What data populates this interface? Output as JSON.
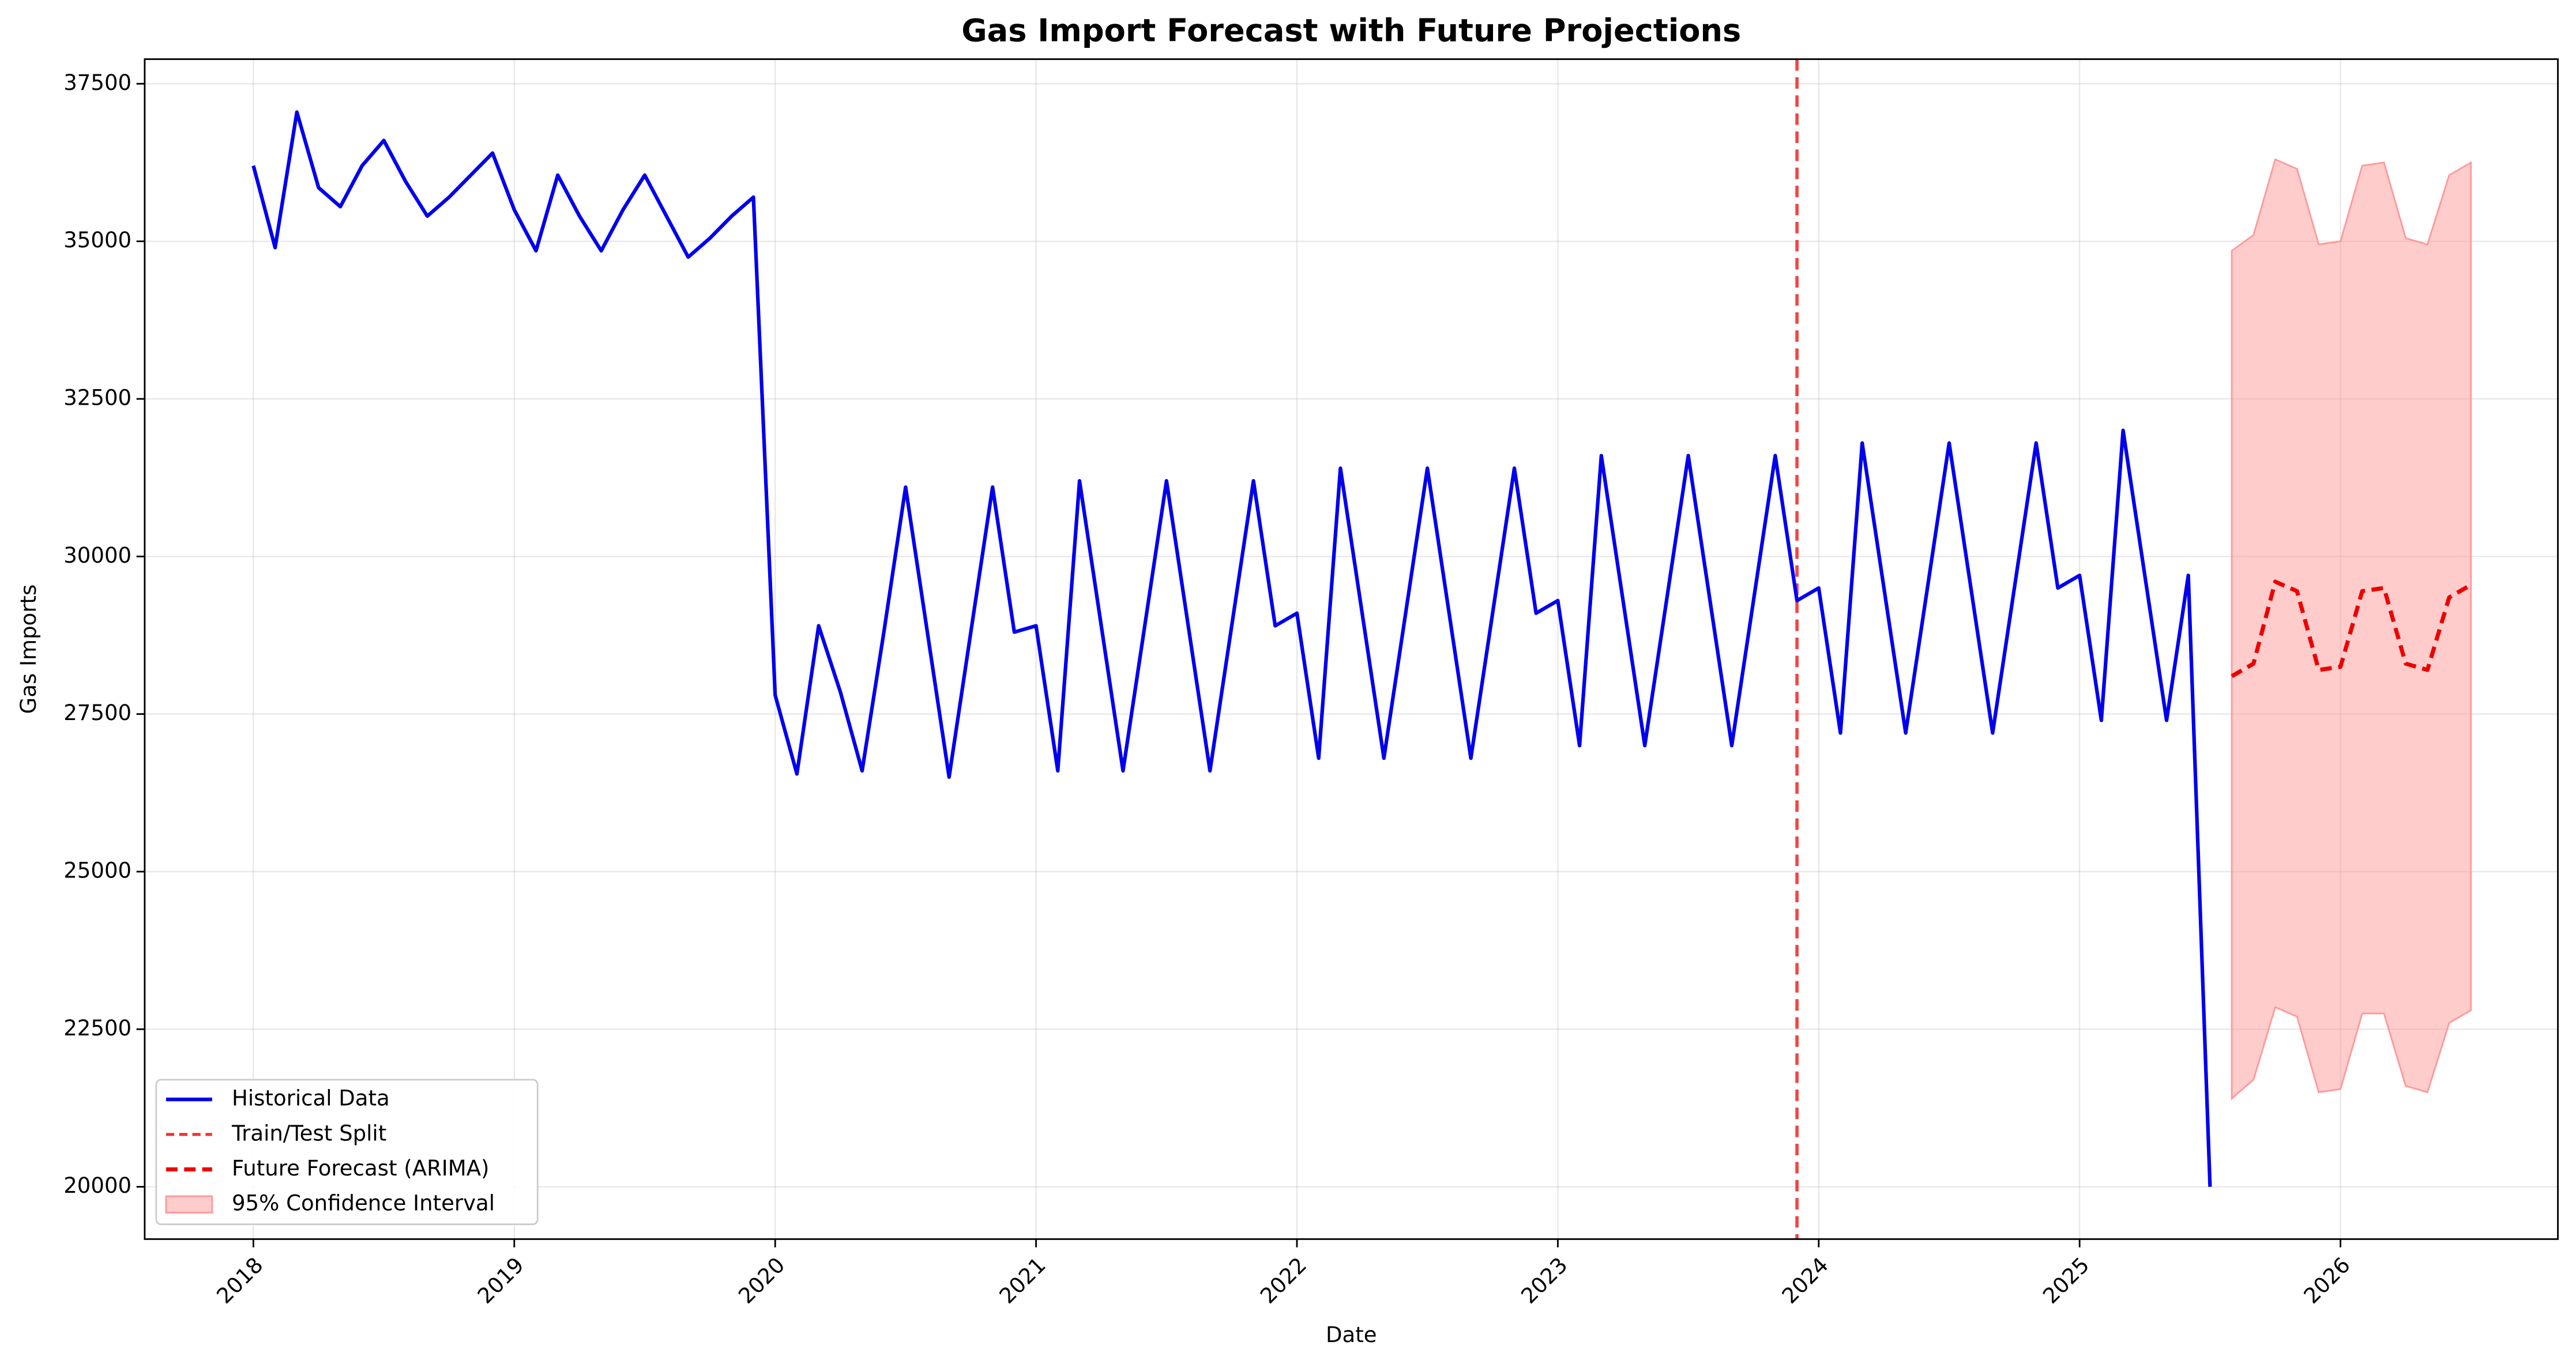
{
  "chart_data": {
    "type": "line",
    "title": "Gas Import Forecast with Future Projections",
    "x_label": "Date",
    "y_label": "Gas Imports",
    "xlim": [
      "2017-08",
      "2026-11"
    ],
    "xticks": [
      {
        "value": "2018-01",
        "label": "2018"
      },
      {
        "value": "2019-01",
        "label": "2019"
      },
      {
        "value": "2020-01",
        "label": "2020"
      },
      {
        "value": "2021-01",
        "label": "2021"
      },
      {
        "value": "2022-01",
        "label": "2022"
      },
      {
        "value": "2023-01",
        "label": "2023"
      },
      {
        "value": "2024-01",
        "label": "2024"
      },
      {
        "value": "2025-01",
        "label": "2025"
      },
      {
        "value": "2026-01",
        "label": "2026"
      }
    ],
    "ylim": [
      19170,
      37890
    ],
    "yticks": [
      20000,
      22500,
      25000,
      27500,
      30000,
      32500,
      35000,
      37500
    ],
    "grid": true,
    "legend": "lower left",
    "series": [
      {
        "name": "Historical Data",
        "color": "#0000ee",
        "dash": "solid",
        "x": [
          "2018-01",
          "2018-02",
          "2018-03",
          "2018-04",
          "2018-05",
          "2018-06",
          "2018-07",
          "2018-08",
          "2018-09",
          "2018-10",
          "2018-11",
          "2018-12",
          "2019-01",
          "2019-02",
          "2019-03",
          "2019-04",
          "2019-05",
          "2019-06",
          "2019-07",
          "2019-08",
          "2019-09",
          "2019-10",
          "2019-11",
          "2019-12",
          "2020-01",
          "2020-02",
          "2020-03",
          "2020-04",
          "2020-05",
          "2020-06",
          "2020-07",
          "2020-08",
          "2020-09",
          "2020-10",
          "2020-11",
          "2020-12",
          "2021-01",
          "2021-02",
          "2021-03",
          "2021-04",
          "2021-05",
          "2021-06",
          "2021-07",
          "2021-08",
          "2021-09",
          "2021-10",
          "2021-11",
          "2021-12",
          "2022-01",
          "2022-02",
          "2022-03",
          "2022-04",
          "2022-05",
          "2022-06",
          "2022-07",
          "2022-08",
          "2022-09",
          "2022-10",
          "2022-11",
          "2022-12",
          "2023-01",
          "2023-02",
          "2023-03",
          "2023-04",
          "2023-05",
          "2023-06",
          "2023-07",
          "2023-08",
          "2023-09",
          "2023-10",
          "2023-11",
          "2023-12",
          "2024-01",
          "2024-02",
          "2024-03",
          "2024-04",
          "2024-05",
          "2024-06",
          "2024-07",
          "2024-08",
          "2024-09",
          "2024-10",
          "2024-11",
          "2024-12",
          "2025-01",
          "2025-02",
          "2025-03",
          "2025-04",
          "2025-05",
          "2025-06",
          "2025-07"
        ],
        "values": [
          36200,
          34900,
          37050,
          35850,
          35550,
          36200,
          36600,
          35950,
          35400,
          35700,
          36050,
          36400,
          35500,
          34850,
          36050,
          35400,
          34850,
          35500,
          36050,
          35400,
          34750,
          35050,
          35400,
          35700,
          27800,
          26550,
          28900,
          27850,
          26600,
          28800,
          31100,
          28800,
          26500,
          28800,
          31100,
          28800,
          28900,
          26600,
          31200,
          28900,
          26600,
          28900,
          31200,
          28900,
          26600,
          28900,
          31200,
          28900,
          29100,
          26800,
          31400,
          29100,
          26800,
          29100,
          31400,
          29100,
          26800,
          29100,
          31400,
          29100,
          29300,
          27000,
          31600,
          29300,
          27000,
          29300,
          31600,
          29300,
          27000,
          29300,
          31600,
          29300,
          29500,
          27200,
          31800,
          29500,
          27200,
          29500,
          31800,
          29500,
          27200,
          29500,
          31800,
          29500,
          29700,
          27400,
          32000,
          29700,
          27400,
          29700,
          20000
        ]
      },
      {
        "name": "Future Forecast (ARIMA)",
        "color": "#ee0000",
        "dash": "dashed",
        "x": [
          "2025-08",
          "2025-09",
          "2025-10",
          "2025-11",
          "2025-12",
          "2026-01",
          "2026-02",
          "2026-03",
          "2026-04",
          "2026-05",
          "2026-06",
          "2026-07"
        ],
        "values": [
          28100,
          28300,
          29600,
          29450,
          28200,
          28250,
          29450,
          29500,
          28300,
          28200,
          29350,
          29550
        ]
      }
    ],
    "split_line": {
      "name": "Train/Test Split",
      "x": "2023-12",
      "color": "#ee3333"
    },
    "confidence_band": {
      "name": "95% Confidence Interval",
      "color": "#ff9999",
      "x": [
        "2025-08",
        "2025-09",
        "2025-10",
        "2025-11",
        "2025-12",
        "2026-01",
        "2026-02",
        "2026-03",
        "2026-04",
        "2026-05",
        "2026-06",
        "2026-07"
      ],
      "lower": [
        21400,
        21700,
        22850,
        22700,
        21500,
        21550,
        22750,
        22750,
        21600,
        21500,
        22600,
        22800
      ],
      "upper": [
        34850,
        35100,
        36300,
        36150,
        34950,
        35000,
        36200,
        36250,
        35050,
        34950,
        36050,
        36250
      ]
    }
  }
}
